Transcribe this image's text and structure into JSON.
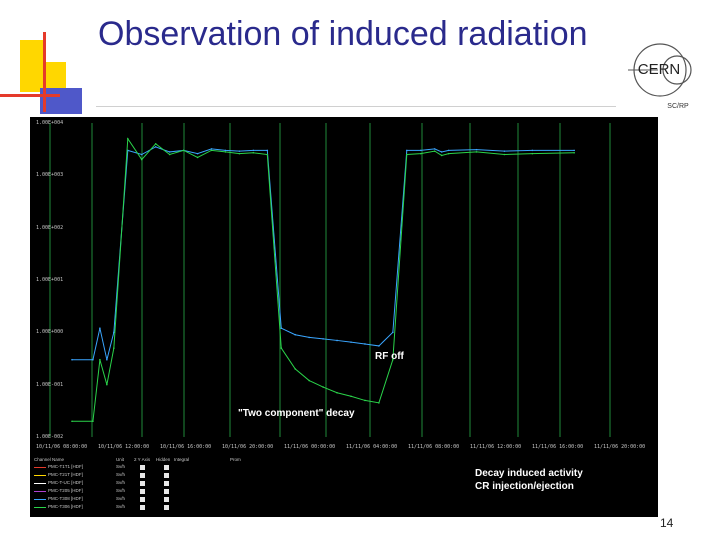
{
  "slide": {
    "title": "Observation of induced radiation",
    "page_number": "14"
  },
  "logo": {
    "name": "CERN",
    "subtext": "SC/RP",
    "icon": "cern-logo"
  },
  "colors": {
    "title": "#2a2a8c",
    "deco_yellow": "#ffd700",
    "deco_blue": "#4f58c9",
    "deco_red": "#e53a2a",
    "screen_bg": "#000000",
    "trace_green": "#2ad44a",
    "trace_cyan": "#3aa6ff",
    "grid_green": "#1f8a3a"
  },
  "chart_data": {
    "type": "line",
    "title": "",
    "xlabel": "",
    "ylabel": "",
    "y_scale": "log",
    "ylim": [
      0.01,
      10000
    ],
    "y_ticks": [
      "1.00E+004",
      "1.00E+003",
      "1.00E+002",
      "1.00E+001",
      "1.00E+000",
      "1.00E-001",
      "1.00E-002"
    ],
    "x_ticks": [
      "10/11/06 08:00:00",
      "10/11/06 12:00:00",
      "10/11/06 16:00:00",
      "10/11/06 20:00:00",
      "11/11/06 00:00:00",
      "11/11/06 04:00:00",
      "11/11/06 08:00:00",
      "11/11/06 12:00:00",
      "11/11/06 16:00:00",
      "11/11/06 20:00:00"
    ],
    "series": [
      {
        "color": "#3aa6ff",
        "x_hours": [
          0,
          1.5,
          2.0,
          2.5,
          3.0,
          4.0,
          5.0,
          6.0,
          7.0,
          8.0,
          9.0,
          10.0,
          11.0,
          12.0,
          13.0,
          14.0,
          15.0,
          16.0,
          17.0,
          18.0,
          19.0,
          20.0,
          21.0,
          22.0,
          23.0,
          24.0,
          25.0,
          26.0,
          26.5,
          27.0,
          29.0,
          31.0,
          33.0,
          36.0
        ],
        "y": [
          0.3,
          0.3,
          1.2,
          0.3,
          1.0,
          3000,
          2500,
          3500,
          2800,
          3000,
          2600,
          3200,
          3000,
          2900,
          3000,
          3000,
          1.2,
          0.9,
          0.8,
          0.75,
          0.7,
          0.65,
          0.6,
          0.55,
          1.0,
          3000,
          3000,
          3200,
          2800,
          3000,
          3100,
          2900,
          3000,
          3000
        ]
      },
      {
        "color": "#2ad44a",
        "x_hours": [
          0,
          1.5,
          2.0,
          2.5,
          3.0,
          4.0,
          5.0,
          6.0,
          7.0,
          8.0,
          9.0,
          10.0,
          11.0,
          12.0,
          13.0,
          14.0,
          15.0,
          16.0,
          17.0,
          18.0,
          19.0,
          20.0,
          21.0,
          22.0,
          23.0,
          24.0,
          25.0,
          26.0,
          26.5,
          27.0,
          29.0,
          31.0,
          33.0,
          36.0
        ],
        "y": [
          0.02,
          0.02,
          0.3,
          0.1,
          0.5,
          5000,
          2000,
          4000,
          2500,
          3000,
          2200,
          3000,
          2800,
          2600,
          2700,
          2500,
          0.5,
          0.2,
          0.12,
          0.09,
          0.07,
          0.06,
          0.05,
          0.045,
          0.3,
          2500,
          2600,
          2900,
          2400,
          2600,
          2800,
          2500,
          2600,
          2700
        ]
      }
    ],
    "annotations": [
      "RF off",
      "\"Two component\" decay",
      "Decay induced activity",
      "CR injection/ejection"
    ]
  },
  "legend": {
    "headers": [
      "Channel Name",
      "Unit",
      "2 Y Axis",
      "Hidden",
      "Integral",
      "Prom"
    ],
    "rows": [
      {
        "name": "PMC-T1T1 [HDF]",
        "unit": "Sv/h",
        "color": "#e53a2a"
      },
      {
        "name": "PMC-T21T [HDF]",
        "unit": "Sv/h",
        "color": "#ffd700"
      },
      {
        "name": "PMC-T-UC [HDF]",
        "unit": "Sv/h",
        "color": "#ffffff"
      },
      {
        "name": "PMC-T205 [HDF]",
        "unit": "Sv/h",
        "color": "#b040d0"
      },
      {
        "name": "PMC-T308 [HDF]",
        "unit": "Sv/h",
        "color": "#3aa6ff"
      },
      {
        "name": "PMC-T306 [HDF]",
        "unit": "Sv/h",
        "color": "#2ad44a"
      }
    ]
  }
}
